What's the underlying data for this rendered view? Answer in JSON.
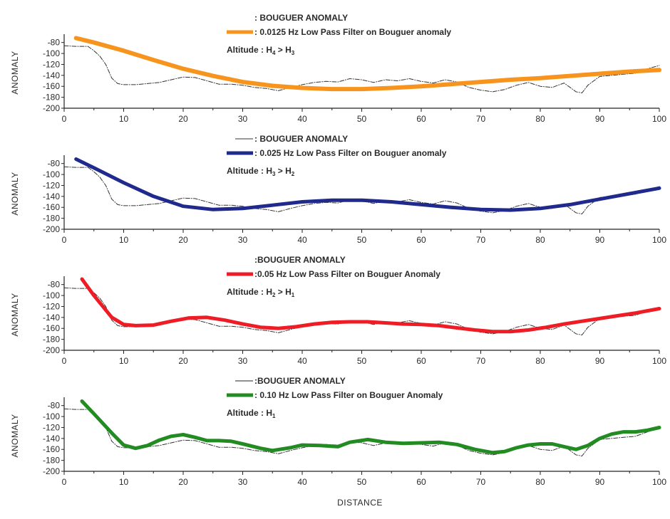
{
  "xlabel": "DISTANCE",
  "chart_data": [
    {
      "type": "line",
      "ylabel": "ANOMALY",
      "xlim": [
        0,
        100
      ],
      "ylim": [
        -200,
        -70
      ],
      "xticks": [
        0,
        10,
        20,
        30,
        40,
        50,
        60,
        70,
        80,
        90,
        100
      ],
      "yticks": [
        -80,
        -100,
        -120,
        -140,
        -160,
        -180,
        -200
      ],
      "legend": [
        {
          "label": ": BOUGUER ANOMALY",
          "style": "none"
        },
        {
          "label": ": 0.0125 Hz Low Pass Filter on Bouguer anomaly",
          "color": "#f7941d",
          "style": "thick"
        }
      ],
      "altitude": {
        "text": "Altitude : H",
        "sub1": "4",
        "mid": " > H",
        "sub2": "3"
      },
      "series": [
        {
          "name": "BOUGUER ANOMALY",
          "color": "#333333",
          "dashed": true,
          "width": 1,
          "x": [
            0,
            2,
            4,
            5,
            6,
            7,
            8,
            9,
            10,
            12,
            14,
            16,
            18,
            20,
            22,
            24,
            26,
            28,
            30,
            32,
            34,
            36,
            38,
            40,
            42,
            44,
            46,
            48,
            50,
            52,
            54,
            56,
            58,
            60,
            62,
            64,
            66,
            68,
            70,
            72,
            74,
            76,
            78,
            80,
            82,
            84,
            86,
            87,
            88,
            89,
            90,
            92,
            94,
            96,
            98,
            100
          ],
          "y": [
            -86,
            -87,
            -87,
            -95,
            -105,
            -120,
            -145,
            -155,
            -157,
            -157,
            -155,
            -153,
            -148,
            -143,
            -144,
            -150,
            -156,
            -156,
            -158,
            -162,
            -164,
            -168,
            -162,
            -157,
            -153,
            -151,
            -152,
            -146,
            -148,
            -153,
            -148,
            -150,
            -146,
            -151,
            -154,
            -148,
            -152,
            -162,
            -167,
            -170,
            -166,
            -158,
            -153,
            -160,
            -162,
            -154,
            -170,
            -172,
            -158,
            -150,
            -142,
            -140,
            -138,
            -136,
            -128,
            -122
          ]
        },
        {
          "name": "0.0125 Hz Low Pass Filter on Bouguer anomaly",
          "color": "#f7941d",
          "dashed": false,
          "width": 6,
          "x": [
            2,
            5,
            10,
            15,
            20,
            25,
            30,
            35,
            40,
            45,
            50,
            55,
            60,
            65,
            70,
            75,
            80,
            85,
            90,
            95,
            100
          ],
          "y": [
            -72,
            -80,
            -95,
            -112,
            -128,
            -141,
            -152,
            -159,
            -163,
            -165,
            -165,
            -163,
            -160,
            -156,
            -152,
            -148,
            -145,
            -141,
            -137,
            -133,
            -130
          ]
        }
      ]
    },
    {
      "type": "line",
      "ylabel": "ANOMALY",
      "xlim": [
        0,
        100
      ],
      "ylim": [
        -200,
        -70
      ],
      "xticks": [
        0,
        10,
        20,
        30,
        40,
        50,
        60,
        70,
        80,
        90,
        100
      ],
      "yticks": [
        -80,
        -100,
        -120,
        -140,
        -160,
        -180,
        -200
      ],
      "legend": [
        {
          "label": ": BOUGUER ANOMALY",
          "color": "#333333",
          "style": "thin"
        },
        {
          "label": ": 0.025 Hz Low Pass Filter on Bouguer anomaly",
          "color": "#1f2a8c",
          "style": "thick"
        }
      ],
      "altitude": {
        "text": "Altitude : H",
        "sub1": "3",
        "mid": " > H",
        "sub2": "2"
      },
      "series": [
        {
          "name": "BOUGUER ANOMALY",
          "color": "#333333",
          "dashed": true,
          "width": 1,
          "x": [
            0,
            2,
            4,
            5,
            6,
            7,
            8,
            9,
            10,
            12,
            14,
            16,
            18,
            20,
            22,
            24,
            26,
            28,
            30,
            32,
            34,
            36,
            38,
            40,
            42,
            44,
            46,
            48,
            50,
            52,
            54,
            56,
            58,
            60,
            62,
            64,
            66,
            68,
            70,
            72,
            74,
            76,
            78,
            80,
            82,
            84,
            86,
            87,
            88,
            89,
            90,
            92,
            94,
            96,
            98,
            100
          ],
          "y": [
            -86,
            -87,
            -87,
            -95,
            -105,
            -120,
            -145,
            -155,
            -157,
            -157,
            -155,
            -153,
            -148,
            -143,
            -144,
            -150,
            -156,
            -156,
            -158,
            -162,
            -164,
            -168,
            -162,
            -157,
            -153,
            -151,
            -152,
            -146,
            -148,
            -153,
            -148,
            -150,
            -146,
            -151,
            -154,
            -148,
            -152,
            -162,
            -167,
            -170,
            -166,
            -158,
            -153,
            -160,
            -162,
            -154,
            -170,
            -172,
            -158,
            -150,
            -142,
            -140,
            -138,
            -136,
            -128,
            -122
          ]
        },
        {
          "name": "0.025 Hz Low Pass Filter on Bouguer anomaly",
          "color": "#1f2a8c",
          "dashed": false,
          "width": 5,
          "x": [
            2,
            5,
            10,
            15,
            20,
            25,
            30,
            35,
            40,
            45,
            50,
            55,
            60,
            65,
            70,
            75,
            80,
            85,
            90,
            95,
            100
          ],
          "y": [
            -72,
            -88,
            -115,
            -140,
            -158,
            -164,
            -162,
            -156,
            -150,
            -147,
            -147,
            -150,
            -155,
            -160,
            -164,
            -165,
            -162,
            -155,
            -145,
            -135,
            -125
          ]
        }
      ]
    },
    {
      "type": "line",
      "ylabel": "ANOMALY",
      "xlim": [
        0,
        100
      ],
      "ylim": [
        -200,
        -70
      ],
      "xticks": [
        0,
        10,
        20,
        30,
        40,
        50,
        60,
        70,
        80,
        90,
        100
      ],
      "yticks": [
        -80,
        -100,
        -120,
        -140,
        -160,
        -180,
        -200
      ],
      "legend": [
        {
          "label": ":BOUGUER ANOMALY",
          "style": "none"
        },
        {
          "label": ":0.05 Hz Low Pass Filter on Bouguer Anomaly",
          "color": "#ee1c24",
          "style": "thick"
        }
      ],
      "altitude": {
        "text": "Altitude : H",
        "sub1": "2",
        "mid": " > H",
        "sub2": "1"
      },
      "series": [
        {
          "name": "BOUGUER ANOMALY",
          "color": "#333333",
          "dashed": true,
          "width": 1,
          "x": [
            0,
            2,
            4,
            5,
            6,
            7,
            8,
            9,
            10,
            12,
            14,
            16,
            18,
            20,
            22,
            24,
            26,
            28,
            30,
            32,
            34,
            36,
            38,
            40,
            42,
            44,
            46,
            48,
            50,
            52,
            54,
            56,
            58,
            60,
            62,
            64,
            66,
            68,
            70,
            72,
            74,
            76,
            78,
            80,
            82,
            84,
            86,
            87,
            88,
            89,
            90,
            92,
            94,
            96,
            98,
            100
          ],
          "y": [
            -86,
            -87,
            -87,
            -95,
            -105,
            -120,
            -145,
            -155,
            -157,
            -157,
            -155,
            -153,
            -148,
            -143,
            -144,
            -150,
            -156,
            -156,
            -158,
            -162,
            -164,
            -168,
            -162,
            -157,
            -153,
            -151,
            -152,
            -146,
            -148,
            -153,
            -148,
            -150,
            -146,
            -151,
            -154,
            -148,
            -152,
            -162,
            -167,
            -170,
            -166,
            -158,
            -153,
            -160,
            -162,
            -154,
            -170,
            -172,
            -158,
            -150,
            -142,
            -140,
            -138,
            -136,
            -128,
            -122
          ]
        },
        {
          "name": "0.05 Hz Low Pass Filter on Bouguer Anomaly",
          "color": "#ee1c24",
          "dashed": false,
          "width": 5,
          "x": [
            3,
            5,
            8,
            10,
            12,
            15,
            18,
            21,
            24,
            27,
            30,
            33,
            36,
            39,
            42,
            45,
            48,
            51,
            54,
            57,
            60,
            63,
            66,
            69,
            72,
            75,
            78,
            81,
            84,
            87,
            90,
            93,
            96,
            100
          ],
          "y": [
            -70,
            -100,
            -140,
            -153,
            -155,
            -154,
            -147,
            -141,
            -140,
            -145,
            -152,
            -158,
            -160,
            -157,
            -152,
            -149,
            -148,
            -148,
            -150,
            -152,
            -153,
            -155,
            -159,
            -163,
            -166,
            -166,
            -163,
            -158,
            -152,
            -147,
            -142,
            -137,
            -132,
            -124
          ]
        }
      ]
    },
    {
      "type": "line",
      "ylabel": "ANOMALY",
      "xlim": [
        0,
        100
      ],
      "ylim": [
        -200,
        -70
      ],
      "xticks": [
        0,
        10,
        20,
        30,
        40,
        50,
        60,
        70,
        80,
        90,
        100
      ],
      "yticks": [
        -80,
        -100,
        -120,
        -140,
        -160,
        -180,
        -200
      ],
      "legend": [
        {
          "label": ":BOUGUER ANOMALY",
          "color": "#222222",
          "style": "thin"
        },
        {
          "label": ": 0.10 Hz Low Pass Filter on Bouguer Anomaly",
          "color": "#228b22",
          "style": "thick"
        }
      ],
      "altitude": {
        "text": "Altitude : H",
        "sub1": "1",
        "mid": "",
        "sub2": ""
      },
      "series": [
        {
          "name": "BOUGUER ANOMALY",
          "color": "#333333",
          "dashed": true,
          "width": 1,
          "x": [
            0,
            2,
            4,
            5,
            6,
            7,
            8,
            9,
            10,
            12,
            14,
            16,
            18,
            20,
            22,
            24,
            26,
            28,
            30,
            32,
            34,
            36,
            38,
            40,
            42,
            44,
            46,
            48,
            50,
            52,
            54,
            56,
            58,
            60,
            62,
            64,
            66,
            68,
            70,
            72,
            74,
            76,
            78,
            80,
            82,
            84,
            86,
            87,
            88,
            89,
            90,
            92,
            94,
            96,
            98,
            100
          ],
          "y": [
            -86,
            -87,
            -87,
            -95,
            -105,
            -120,
            -145,
            -155,
            -157,
            -157,
            -155,
            -153,
            -148,
            -143,
            -144,
            -150,
            -156,
            -156,
            -158,
            -162,
            -164,
            -168,
            -162,
            -157,
            -153,
            -151,
            -152,
            -146,
            -148,
            -153,
            -148,
            -150,
            -146,
            -151,
            -154,
            -148,
            -152,
            -162,
            -167,
            -170,
            -166,
            -158,
            -153,
            -160,
            -162,
            -154,
            -170,
            -172,
            -158,
            -150,
            -142,
            -140,
            -138,
            -136,
            -128,
            -122
          ]
        },
        {
          "name": "0.10 Hz Low Pass Filter on Bouguer Anomaly",
          "color": "#228b22",
          "dashed": false,
          "width": 5,
          "x": [
            3,
            5,
            8,
            10,
            12,
            14,
            16,
            18,
            20,
            22,
            24,
            26,
            28,
            30,
            33,
            35,
            38,
            40,
            43,
            46,
            48,
            51,
            54,
            57,
            60,
            63,
            66,
            69,
            72,
            74,
            76,
            78,
            80,
            82,
            84,
            86,
            88,
            90,
            92,
            94,
            96,
            98,
            100
          ],
          "y": [
            -72,
            -95,
            -130,
            -152,
            -158,
            -153,
            -143,
            -136,
            -133,
            -138,
            -144,
            -144,
            -145,
            -150,
            -158,
            -162,
            -157,
            -152,
            -153,
            -155,
            -147,
            -142,
            -147,
            -149,
            -148,
            -147,
            -151,
            -160,
            -166,
            -164,
            -157,
            -152,
            -150,
            -150,
            -155,
            -160,
            -153,
            -140,
            -132,
            -128,
            -128,
            -125,
            -120
          ]
        }
      ]
    }
  ]
}
